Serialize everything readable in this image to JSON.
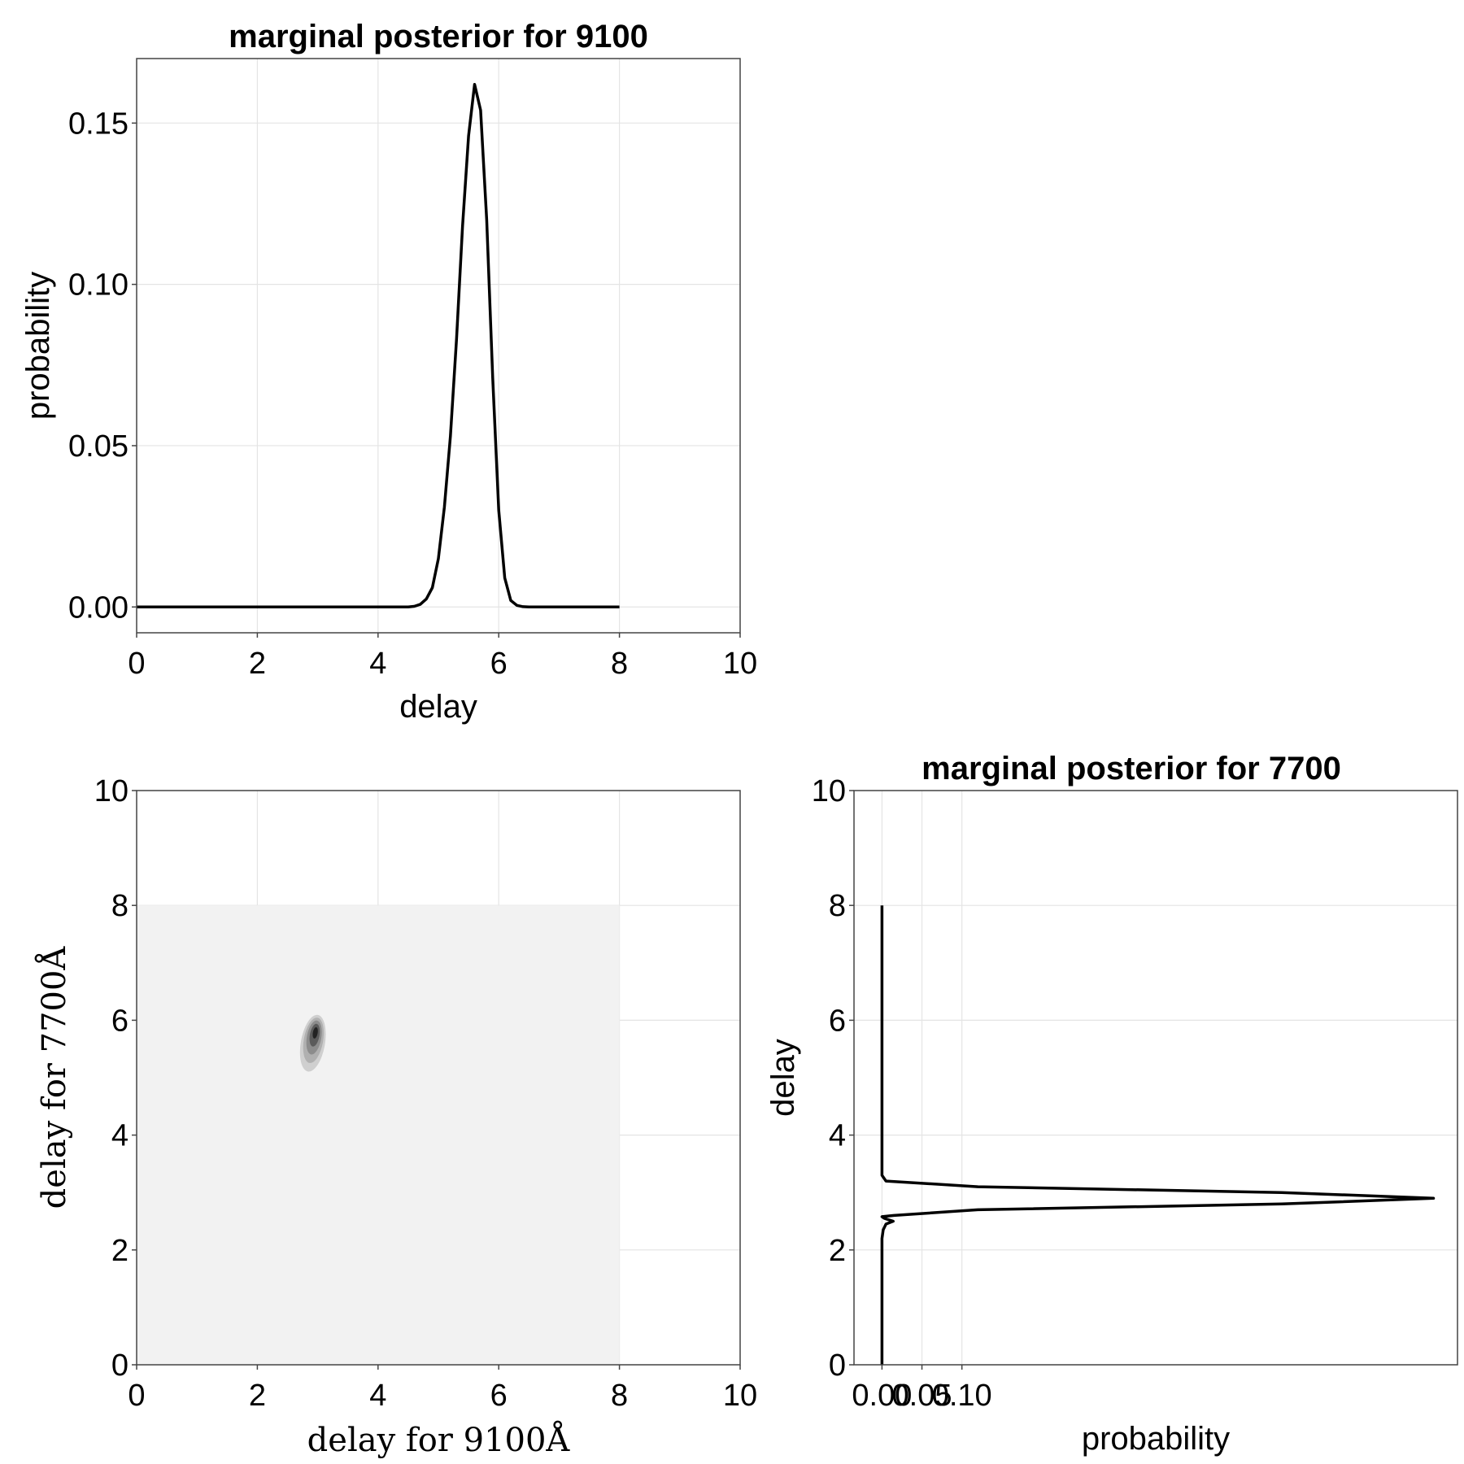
{
  "chart_data": [
    {
      "type": "line",
      "title": "marginal posterior for 9100",
      "xlabel": "delay",
      "ylabel": "probability",
      "xlim": [
        0,
        10
      ],
      "ylim": [
        -0.008,
        0.17
      ],
      "xticks": [
        "0",
        "2",
        "4",
        "6",
        "8",
        "10"
      ],
      "yticks": [
        "0.00",
        "0.05",
        "0.10",
        "0.15"
      ],
      "grid": true,
      "series": [
        {
          "x": [
            0,
            1,
            2,
            3,
            4,
            4.5,
            4.6,
            4.7,
            4.8,
            4.9,
            5.0,
            5.1,
            5.2,
            5.3,
            5.4,
            5.5,
            5.6,
            5.7,
            5.8,
            5.9,
            6.0,
            6.1,
            6.2,
            6.3,
            6.4,
            6.5,
            6.6,
            7.0,
            7.5,
            8.0
          ],
          "y": [
            0,
            0,
            0,
            0,
            0,
            0,
            0.0002,
            0.0008,
            0.0025,
            0.006,
            0.015,
            0.031,
            0.053,
            0.083,
            0.118,
            0.146,
            0.162,
            0.154,
            0.12,
            0.071,
            0.03,
            0.009,
            0.002,
            0.0005,
            0.0001,
            0,
            0,
            0,
            0,
            0
          ]
        }
      ]
    },
    {
      "type": "heatmap",
      "title": "",
      "xlabel": "delay for 9100Å",
      "ylabel": "delay for 7700Å",
      "xlim": [
        0,
        10
      ],
      "ylim": [
        0,
        10
      ],
      "xticks": [
        "0",
        "2",
        "4",
        "6",
        "8",
        "10"
      ],
      "yticks": [
        "0",
        "2",
        "4",
        "6",
        "8",
        "10"
      ],
      "grid": true,
      "support": {
        "x": [
          0,
          8
        ],
        "y": [
          0,
          8
        ]
      },
      "peak": {
        "x": 2.95,
        "y": 5.75
      },
      "contours": [
        {
          "level": 0.1,
          "cx": 2.92,
          "cy": 5.6,
          "rx": 0.2,
          "ry": 0.5,
          "color": "#cfcfcf"
        },
        {
          "level": 0.3,
          "cx": 2.93,
          "cy": 5.65,
          "rx": 0.16,
          "ry": 0.4,
          "color": "#b0b0b0"
        },
        {
          "level": 0.5,
          "cx": 2.94,
          "cy": 5.7,
          "rx": 0.12,
          "ry": 0.3,
          "color": "#8c8c8c"
        },
        {
          "level": 0.7,
          "cx": 2.95,
          "cy": 5.74,
          "rx": 0.08,
          "ry": 0.2,
          "color": "#5a5a5a"
        },
        {
          "level": 0.9,
          "cx": 2.96,
          "cy": 5.78,
          "rx": 0.04,
          "ry": 0.1,
          "color": "#222222"
        }
      ]
    },
    {
      "type": "line",
      "title": "marginal posterior for 7700",
      "xlabel": "probability",
      "ylabel": "delay",
      "xlim": [
        -0.035,
        0.72
      ],
      "ylim": [
        0,
        10
      ],
      "xticks": [
        "0.00",
        "0.05",
        "0.10"
      ],
      "yticks": [
        "0",
        "2",
        "4",
        "6",
        "8",
        "10"
      ],
      "grid": true,
      "series": [
        {
          "x": [
            0,
            0,
            0,
            0.0015,
            0.005,
            0.014,
            0.003,
            0.0,
            0.015,
            0.12,
            0.5,
            0.69,
            0.5,
            0.12,
            0.005,
            0,
            0,
            0
          ],
          "y": [
            0,
            1.0,
            2.2,
            2.35,
            2.45,
            2.5,
            2.55,
            2.58,
            2.6,
            2.7,
            2.8,
            2.9,
            3.0,
            3.1,
            3.2,
            3.3,
            5.0,
            8.0
          ]
        }
      ]
    }
  ]
}
